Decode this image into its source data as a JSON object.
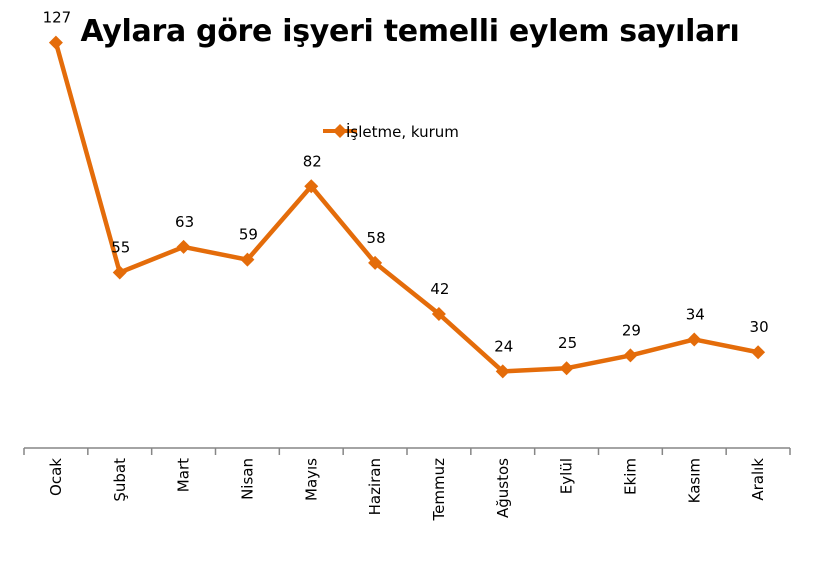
{
  "chart_data": {
    "type": "line",
    "title": "Aylara göre işyeri temelli eylem sayıları",
    "xlabel": "",
    "ylabel": "",
    "categories": [
      "Ocak",
      "Şubat",
      "Mart",
      "Nisan",
      "Mayıs",
      "Haziran",
      "Temmuz",
      "Ağustos",
      "Eylül",
      "Ekim",
      "Kasım",
      "Aralık"
    ],
    "series": [
      {
        "name": "İşletme, kurum",
        "values": [
          127,
          55,
          63,
          59,
          82,
          58,
          42,
          24,
          25,
          29,
          34,
          30
        ],
        "color": "#E46C0A",
        "marker": "diamond"
      }
    ],
    "ylim": [
      0,
      135
    ],
    "y_axis_visible": false,
    "grid": false,
    "data_labels": true,
    "legend_position": "top"
  }
}
